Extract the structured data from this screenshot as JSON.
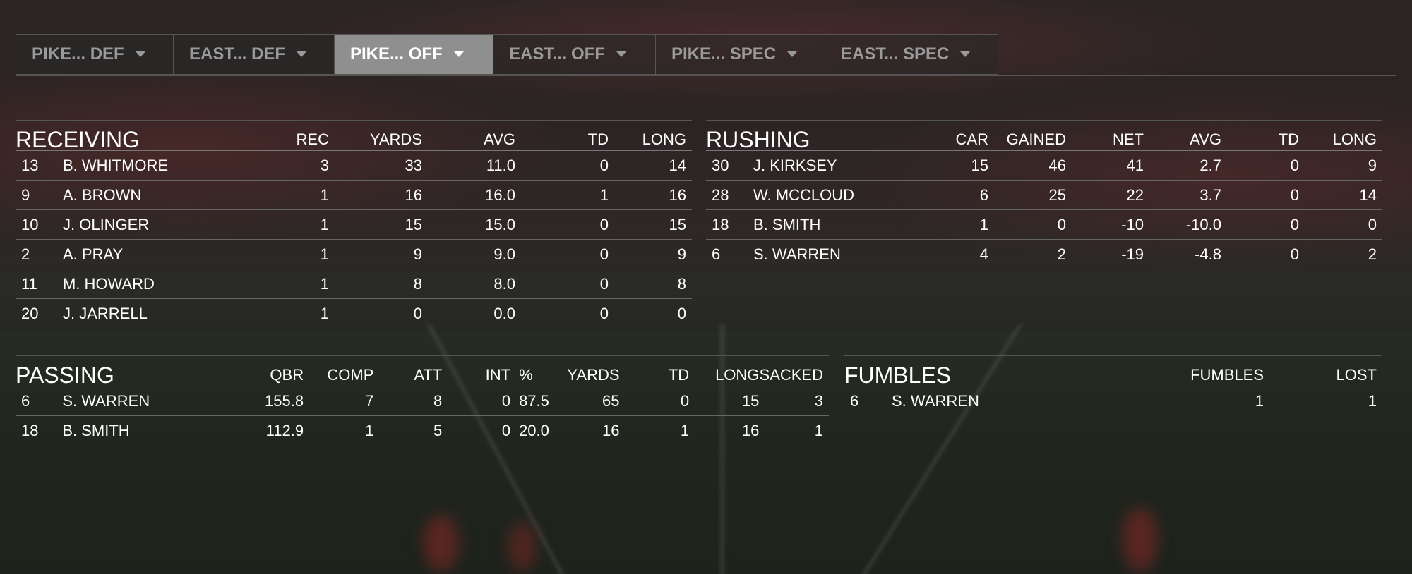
{
  "tabs": [
    {
      "label": "PIKE... DEF",
      "active": false
    },
    {
      "label": "EAST... DEF",
      "active": false
    },
    {
      "label": "PIKE... OFF",
      "active": true
    },
    {
      "label": "EAST... OFF",
      "active": false
    },
    {
      "label": "PIKE... SPEC",
      "active": false
    },
    {
      "label": "EAST... SPEC",
      "active": false
    }
  ],
  "receiving": {
    "title": "RECEIVING",
    "columns": [
      "REC",
      "YARDS",
      "AVG",
      "TD",
      "LONG"
    ],
    "rows": [
      {
        "num": "13",
        "name": "B. WHITMORE",
        "stats": [
          "3",
          "33",
          "11.0",
          "0",
          "14"
        ]
      },
      {
        "num": "9",
        "name": "A. BROWN",
        "stats": [
          "1",
          "16",
          "16.0",
          "1",
          "16"
        ]
      },
      {
        "num": "10",
        "name": "J. OLINGER",
        "stats": [
          "1",
          "15",
          "15.0",
          "0",
          "15"
        ]
      },
      {
        "num": "2",
        "name": "A. PRAY",
        "stats": [
          "1",
          "9",
          "9.0",
          "0",
          "9"
        ]
      },
      {
        "num": "11",
        "name": "M. HOWARD",
        "stats": [
          "1",
          "8",
          "8.0",
          "0",
          "8"
        ]
      },
      {
        "num": "20",
        "name": "J. JARRELL",
        "stats": [
          "1",
          "0",
          "0.0",
          "0",
          "0"
        ]
      }
    ]
  },
  "rushing": {
    "title": "RUSHING",
    "columns": [
      "CAR",
      "GAINED",
      "NET",
      "AVG",
      "TD",
      "LONG"
    ],
    "rows": [
      {
        "num": "30",
        "name": "J. KIRKSEY",
        "stats": [
          "15",
          "46",
          "41",
          "2.7",
          "0",
          "9"
        ]
      },
      {
        "num": "28",
        "name": "W. MCCLOUD",
        "stats": [
          "6",
          "25",
          "22",
          "3.7",
          "0",
          "14"
        ]
      },
      {
        "num": "18",
        "name": "B. SMITH",
        "stats": [
          "1",
          "0",
          "-10",
          "-10.0",
          "0",
          "0"
        ]
      },
      {
        "num": "6",
        "name": "S. WARREN",
        "stats": [
          "4",
          "2",
          "-19",
          "-4.8",
          "0",
          "2"
        ]
      }
    ]
  },
  "passing": {
    "title": "PASSING",
    "columns": [
      "QBR",
      "COMP",
      "ATT",
      "INT",
      "%",
      "YARDS",
      "TD",
      "LONG",
      "SACKED"
    ],
    "rows": [
      {
        "num": "6",
        "name": "S. WARREN",
        "stats": [
          "155.8",
          "7",
          "8",
          "0",
          "87.5",
          "65",
          "0",
          "15",
          "3"
        ]
      },
      {
        "num": "18",
        "name": "B. SMITH",
        "stats": [
          "112.9",
          "1",
          "5",
          "0",
          "20.0",
          "16",
          "1",
          "16",
          "1"
        ]
      }
    ]
  },
  "fumbles": {
    "title": "FUMBLES",
    "columns": [
      "FUMBLES",
      "LOST"
    ],
    "rows": [
      {
        "num": "6",
        "name": "S. WARREN",
        "stats": [
          "1",
          "1"
        ]
      }
    ]
  }
}
